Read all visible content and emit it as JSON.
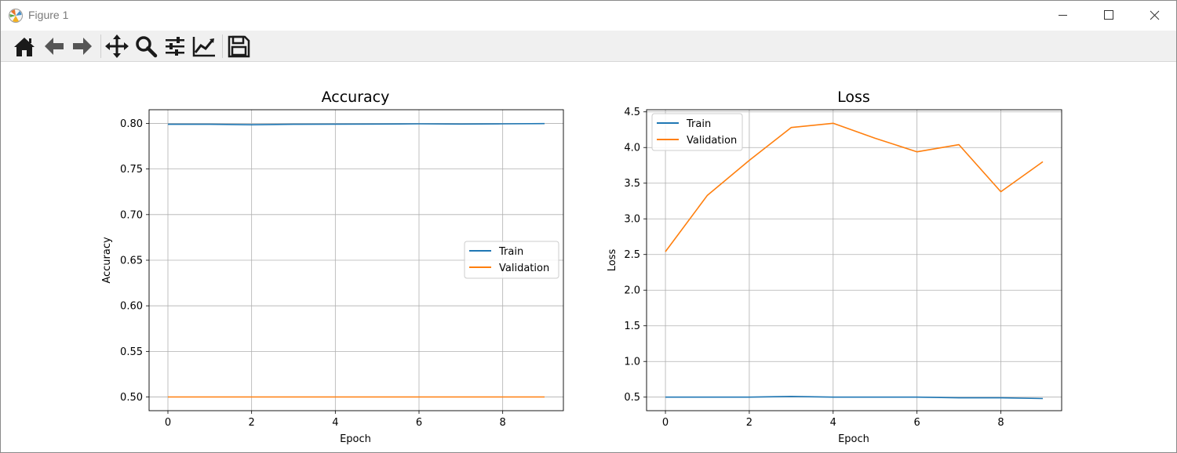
{
  "window": {
    "title": "Figure 1",
    "icon": "matplotlib-logo-icon",
    "controls": [
      "minimize-icon",
      "maximize-icon",
      "close-icon"
    ]
  },
  "toolbar": {
    "tools": [
      {
        "name": "home",
        "icon": "home-icon"
      },
      {
        "name": "back",
        "icon": "arrow-left-icon"
      },
      {
        "name": "forward",
        "icon": "arrow-right-icon"
      },
      {
        "name": "pan",
        "icon": "move-icon"
      },
      {
        "name": "zoom",
        "icon": "magnifier-icon"
      },
      {
        "name": "configure-subplots",
        "icon": "sliders-icon"
      },
      {
        "name": "edit-axis",
        "icon": "line-chart-icon"
      },
      {
        "name": "save",
        "icon": "floppy-disk-icon"
      }
    ]
  },
  "colors": {
    "train": "#1f77b4",
    "validation": "#ff7f0e",
    "grid": "#b0b0b0"
  },
  "chart_data": [
    {
      "type": "line",
      "title": "Accuracy",
      "xlabel": "Epoch",
      "ylabel": "Accuracy",
      "xlim": [
        -0.45,
        9.45
      ],
      "ylim": [
        0.485,
        0.815
      ],
      "xticks": [
        0,
        2,
        4,
        6,
        8
      ],
      "xtick_labels": [
        "0",
        "2",
        "4",
        "6",
        "8"
      ],
      "yticks": [
        0.5,
        0.55,
        0.6,
        0.65,
        0.7,
        0.75,
        0.8
      ],
      "ytick_labels": [
        "0.50",
        "0.55",
        "0.60",
        "0.65",
        "0.70",
        "0.75",
        "0.80"
      ],
      "grid": true,
      "legend": "center-right",
      "x": [
        0,
        1,
        2,
        3,
        4,
        5,
        6,
        7,
        8,
        9
      ],
      "series": [
        {
          "name": "Train",
          "color": "#1f77b4",
          "values": [
            0.799,
            0.799,
            0.7985,
            0.799,
            0.7992,
            0.7993,
            0.7995,
            0.7993,
            0.7995,
            0.7998
          ]
        },
        {
          "name": "Validation",
          "color": "#ff7f0e",
          "values": [
            0.5,
            0.5,
            0.5,
            0.5,
            0.5,
            0.5,
            0.5,
            0.5,
            0.5,
            0.5
          ]
        }
      ]
    },
    {
      "type": "line",
      "title": "Loss",
      "xlabel": "Epoch",
      "ylabel": "Loss",
      "xlim": [
        -0.45,
        9.45
      ],
      "ylim": [
        0.31,
        4.53
      ],
      "xticks": [
        0,
        2,
        4,
        6,
        8
      ],
      "xtick_labels": [
        "0",
        "2",
        "4",
        "6",
        "8"
      ],
      "yticks": [
        0.5,
        1.0,
        1.5,
        2.0,
        2.5,
        3.0,
        3.5,
        4.0,
        4.5
      ],
      "ytick_labels": [
        "0.5",
        "1.0",
        "1.5",
        "2.0",
        "2.5",
        "3.0",
        "3.5",
        "4.0",
        "4.5"
      ],
      "grid": true,
      "legend": "upper-left",
      "x": [
        0,
        1,
        2,
        3,
        4,
        5,
        6,
        7,
        8,
        9
      ],
      "series": [
        {
          "name": "Train",
          "color": "#1f77b4",
          "values": [
            0.5,
            0.5,
            0.5,
            0.51,
            0.5,
            0.5,
            0.5,
            0.49,
            0.49,
            0.48
          ]
        },
        {
          "name": "Validation",
          "color": "#ff7f0e",
          "values": [
            2.54,
            3.33,
            3.82,
            4.28,
            4.34,
            4.13,
            3.94,
            4.04,
            3.38,
            3.8
          ]
        }
      ]
    }
  ]
}
